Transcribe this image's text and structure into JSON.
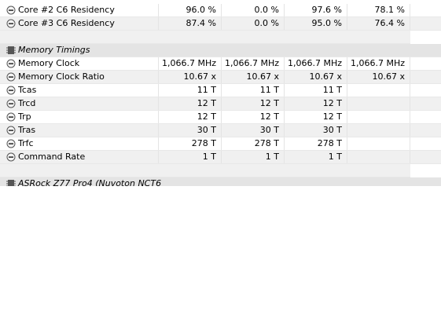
{
  "sensor_rows": [
    {
      "label": "Core #2 C6 Residency",
      "values": [
        "96.0 %",
        "0.0 %",
        "97.6 %",
        "78.1 %"
      ]
    },
    {
      "label": "Core #3 C6 Residency",
      "values": [
        "87.4 %",
        "0.0 %",
        "95.0 %",
        "76.4 %"
      ]
    }
  ],
  "group": {
    "title": "Memory Timings",
    "rows": [
      {
        "label": "Memory Clock",
        "values": [
          "1,066.7 MHz",
          "1,066.7 MHz",
          "1,066.7 MHz",
          "1,066.7 MHz"
        ]
      },
      {
        "label": "Memory Clock Ratio",
        "values": [
          "10.67 x",
          "10.67 x",
          "10.67 x",
          "10.67 x"
        ]
      },
      {
        "label": "Tcas",
        "values": [
          "11 T",
          "11 T",
          "11 T"
        ]
      },
      {
        "label": "Trcd",
        "values": [
          "12 T",
          "12 T",
          "12 T"
        ]
      },
      {
        "label": "Trp",
        "values": [
          "12 T",
          "12 T",
          "12 T"
        ]
      },
      {
        "label": "Tras",
        "values": [
          "30 T",
          "30 T",
          "30 T"
        ]
      },
      {
        "label": "Trfc",
        "values": [
          "278 T",
          "278 T",
          "278 T"
        ]
      },
      {
        "label": "Command Rate",
        "values": [
          "1 T",
          "1 T",
          "1 T"
        ]
      }
    ]
  },
  "next_group": "ASRock Z77 Pro4 (Nuvoton NCT6"
}
